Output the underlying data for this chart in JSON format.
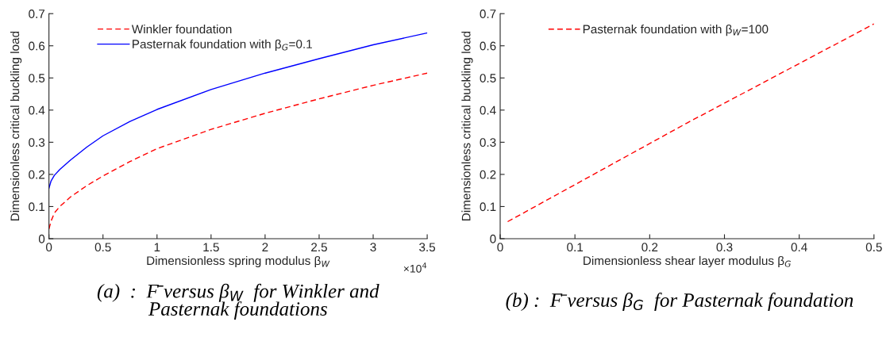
{
  "chart_data": [
    {
      "type": "line",
      "title": "(a)  :  F̄ versus β$_{W}$  for Winkler and\nPasternak foundations",
      "xlabel": "Dimensionless spring modulus β$_{W}$",
      "ylabel": "Dimensionless critical buckling load",
      "xlim": [
        0,
        3.5
      ],
      "ylim": [
        0,
        0.7
      ],
      "xticks": [
        0,
        0.5,
        1,
        1.5,
        2,
        2.5,
        3,
        3.5
      ],
      "yticks": [
        0,
        0.1,
        0.2,
        0.3,
        0.4,
        0.5,
        0.6,
        0.7
      ],
      "annotations": [
        "×10$^{4}$"
      ],
      "legend": "top left",
      "grid": false,
      "series": [
        {
          "name": "Winkler foundation",
          "color": "#ff0000",
          "line_style": "dashed",
          "x": [
            0,
            0.02,
            0.05,
            0.1,
            0.2,
            0.35,
            0.5,
            0.75,
            1,
            1.5,
            2,
            2.5,
            3,
            3.5
          ],
          "values": [
            0.03,
            0.055,
            0.08,
            0.1,
            0.13,
            0.165,
            0.195,
            0.24,
            0.28,
            0.34,
            0.39,
            0.435,
            0.477,
            0.515
          ]
        },
        {
          "name": "Pasternak foundation with β$_{G}$=0.1",
          "color": "#0000ff",
          "line_style": "solid",
          "x": [
            0,
            0.02,
            0.05,
            0.1,
            0.2,
            0.35,
            0.5,
            0.75,
            1,
            1.5,
            2,
            2.5,
            3,
            3.5
          ],
          "values": [
            0.157,
            0.18,
            0.197,
            0.215,
            0.245,
            0.285,
            0.32,
            0.365,
            0.402,
            0.464,
            0.515,
            0.56,
            0.603,
            0.64
          ]
        }
      ]
    },
    {
      "type": "line",
      "title": "(b) :  F̄ versus β$_{G}$  for Pasternak foundation",
      "xlabel": "Dimensionless shear layer modulus β$_{G}$",
      "ylabel": "Dimensionless critical buckling load",
      "xlim": [
        0,
        0.5
      ],
      "ylim": [
        0,
        0.7
      ],
      "xticks": [
        0,
        0.1,
        0.2,
        0.3,
        0.4,
        0.5
      ],
      "yticks": [
        0,
        0.1,
        0.2,
        0.3,
        0.4,
        0.5,
        0.6,
        0.7
      ],
      "legend": "top left",
      "grid": false,
      "series": [
        {
          "name": "Pasternak foundation with β$_{W}$=100",
          "color": "#ff0000",
          "line_style": "dashed",
          "x": [
            0.01,
            0.25,
            0.5
          ],
          "values": [
            0.053,
            0.36,
            0.668
          ]
        }
      ]
    }
  ]
}
